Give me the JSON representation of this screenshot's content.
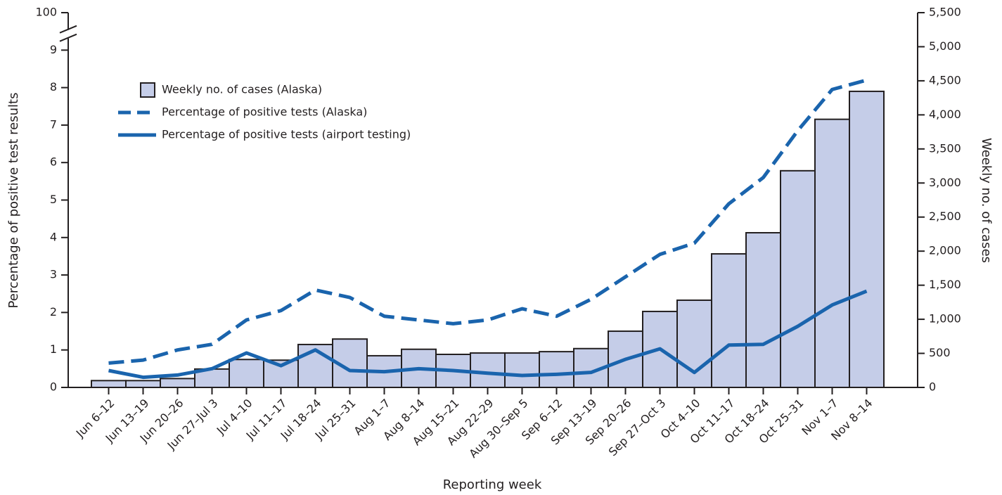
{
  "chart_data": {
    "type": "combo",
    "x_label": "Reporting week",
    "y_label": "Percentage of positive test results",
    "y2_label": "Weekly no. of cases",
    "categories": [
      "Jun 6–12",
      "Jun 13–19",
      "Jun 20–26",
      "Jun 27–Jul 3",
      "Jul 4–10",
      "Jul 11–17",
      "Jul 18–24",
      "Jul 25–31",
      "Aug 1–7",
      "Aug 8–14",
      "Aug 15–21",
      "Aug 22–29",
      "Aug 30–Sep 5",
      "Sep 6–12",
      "Sep 13–19",
      "Sep 20–26",
      "Sep 27–Oct 3",
      "Oct 4–10",
      "Oct 11–17",
      "Oct 18–24",
      "Oct 25–31",
      "Nov 1–7",
      "Nov 8–14"
    ],
    "series": [
      {
        "name": "Weekly no. of cases (Alaska)",
        "type": "bar",
        "axis": "y2",
        "color": "#c5cde8",
        "values": [
          100,
          100,
          130,
          270,
          410,
          400,
          630,
          710,
          465,
          560,
          485,
          505,
          505,
          525,
          570,
          825,
          1115,
          1280,
          1960,
          2270,
          3180,
          3935,
          4345
        ]
      },
      {
        "name": "Percentage of positive tests (Alaska)",
        "type": "line",
        "dashed": true,
        "color": "#1a64ad",
        "values": [
          0.65,
          0.73,
          1.0,
          1.15,
          1.8,
          2.05,
          2.6,
          2.4,
          1.9,
          1.8,
          1.7,
          1.8,
          2.1,
          1.9,
          2.35,
          2.95,
          3.55,
          3.85,
          4.9,
          5.6,
          6.85,
          7.95,
          8.2
        ]
      },
      {
        "name": "Percentage of positive tests (airport testing)",
        "type": "line",
        "dashed": false,
        "color": "#1a64ad",
        "values": [
          0.45,
          0.27,
          0.33,
          0.5,
          0.92,
          0.58,
          1.0,
          0.45,
          0.42,
          0.5,
          0.45,
          0.38,
          0.32,
          0.35,
          0.4,
          0.75,
          1.03,
          0.4,
          1.13,
          1.15,
          1.63,
          2.2,
          2.57
        ]
      }
    ],
    "ylim": [
      0,
      100
    ],
    "yticks": [
      0,
      1,
      2,
      3,
      4,
      5,
      6,
      7,
      8,
      9,
      100
    ],
    "y_axis_break": true,
    "y2lim": [
      0,
      5500
    ],
    "y2ticks": [
      0,
      500,
      {
        "value": 1000,
        "label": "1,000"
      },
      {
        "value": 1500,
        "label": "1,500"
      },
      {
        "value": 2000,
        "label": "2,000"
      },
      {
        "value": 2500,
        "label": "2,500"
      },
      {
        "value": 3000,
        "label": "3,000"
      },
      {
        "value": 3500,
        "label": "3,500"
      },
      {
        "value": 4000,
        "label": "4,000"
      },
      {
        "value": 4500,
        "label": "4,500"
      },
      {
        "value": 5000,
        "label": "5,000"
      },
      {
        "value": 5500,
        "label": "5,500"
      }
    ],
    "grid": false,
    "legend": "upper left"
  }
}
